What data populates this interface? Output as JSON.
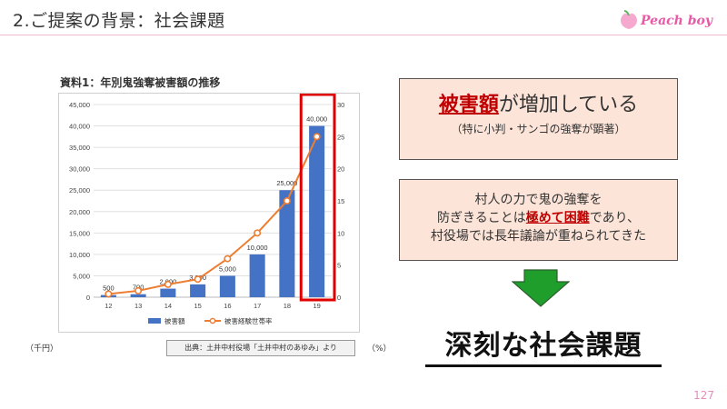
{
  "slide": {
    "title": "2.ご提案の背景：社会課題",
    "brand": "Peach boy",
    "page_number": "127"
  },
  "chart": {
    "title": "資料1：年別鬼強奪被害額の推移",
    "unit_left": "（千円）",
    "unit_right": "（%）",
    "source": "出典：土井中村役場「土井中村のあゆみ」より"
  },
  "chart_data": {
    "type": "bar",
    "title": "資料1：年別鬼強奪被害額の推移",
    "categories": [
      "12",
      "13",
      "14",
      "15",
      "16",
      "17",
      "18",
      "19"
    ],
    "series": [
      {
        "name": "被害額",
        "type": "bar",
        "axis": "left",
        "values": [
          500,
          700,
          2000,
          3000,
          5000,
          10000,
          25000,
          40000
        ],
        "labels": [
          "500",
          "700",
          "2,000",
          "3,000",
          "5,000",
          "10,000",
          "25,000",
          "40,000"
        ],
        "color": "#4472c4"
      },
      {
        "name": "被害経験世帯率",
        "type": "line",
        "axis": "right",
        "values": [
          0.5,
          1,
          2,
          2.8,
          6,
          10,
          15,
          25
        ],
        "color": "#ed7d31"
      }
    ],
    "y_left": {
      "min": 0,
      "max": 45000,
      "ticks": [
        "0",
        "5,000",
        "10,000",
        "15,000",
        "20,000",
        "25,000",
        "30,000",
        "35,000",
        "40,000",
        "45,000"
      ]
    },
    "y_right": {
      "min": 0,
      "max": 30,
      "ticks": [
        "0",
        "5",
        "10",
        "15",
        "20",
        "25",
        "30"
      ]
    },
    "grid": true,
    "legend_position": "bottom",
    "highlight_category": "19",
    "highlight_color": "#e00000"
  },
  "box1": {
    "strong": "被害額",
    "rest": "が増加している",
    "sub": "（特に小判・サンゴの強奪が顕著）"
  },
  "box2": {
    "line1": "村人の力で鬼の強奪を",
    "line2_pre": "防ぎきることは",
    "line2_strong": "極めて困難",
    "line2_post": "であり、",
    "line3": "村役場では長年議論が重ねられてきた"
  },
  "conclusion": "深刻な社会課題",
  "colors": {
    "accent_pink": "#e85aa7",
    "box_fill": "#fce4d8",
    "emphasis_red": "#c00000",
    "arrow_green": "#1f9e2c"
  }
}
